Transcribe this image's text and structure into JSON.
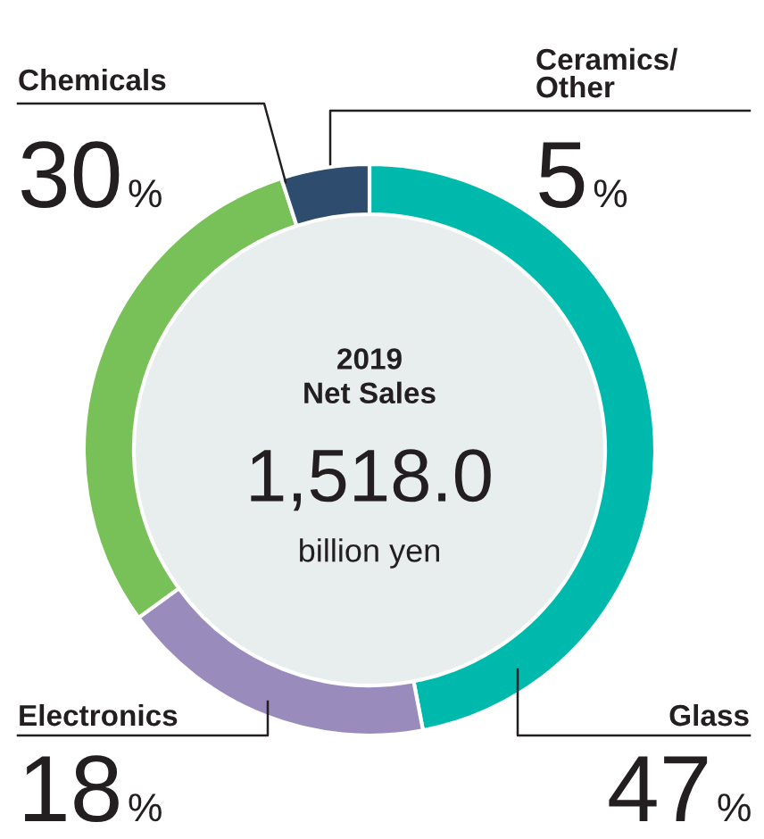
{
  "chart_data": {
    "type": "donut",
    "categories": [
      "Glass",
      "Electronics",
      "Chemicals",
      "Ceramics/\nOther"
    ],
    "values": [
      47,
      18,
      30,
      5
    ],
    "colors": [
      "#00b9ad",
      "#9a8bbd",
      "#77c158",
      "#2e4d6e"
    ],
    "value_labels": [
      "47%",
      "18%",
      "30%",
      "5%"
    ],
    "annotations": [
      "2019\nNet Sales",
      "1,518.0",
      "billion yen"
    ],
    "legend": false
  }
}
